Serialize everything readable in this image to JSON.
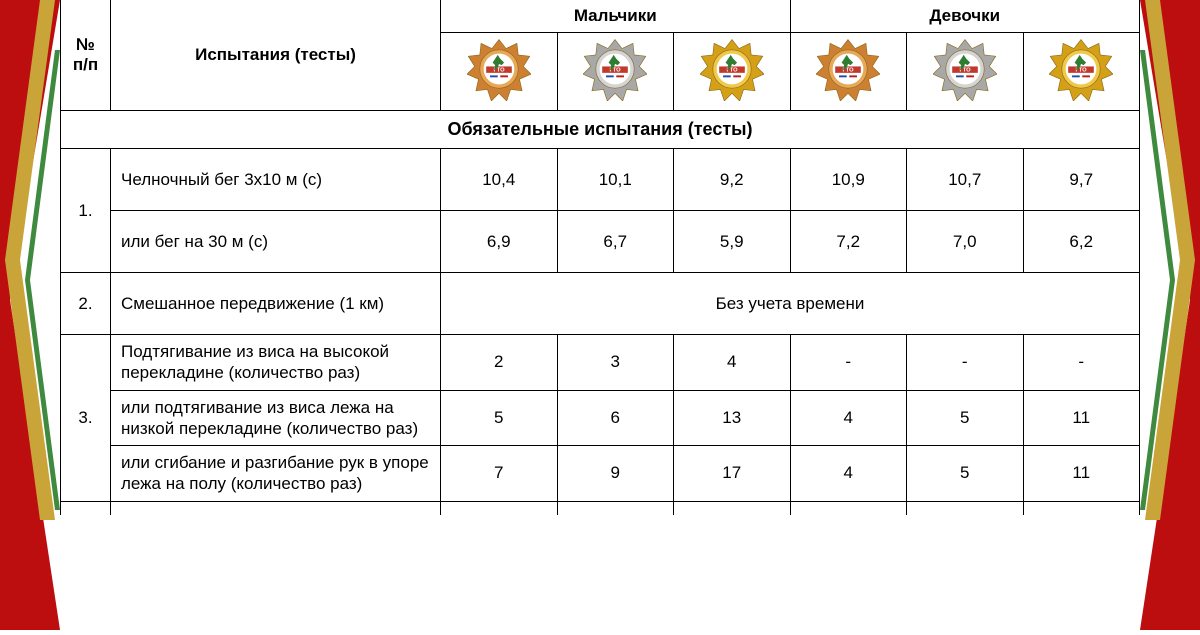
{
  "stripes": {
    "red": "#bc0e0e",
    "gold": "#c9a438",
    "green": "#3f8a3f"
  },
  "header": {
    "num": "№ п/п",
    "tests": "Испытания (тесты)",
    "boys": "Мальчики",
    "girls": "Девочки"
  },
  "badges": {
    "gto_label": "ГТО",
    "bronze_outer": "#cd7f32",
    "bronze_inner": "#e8a858",
    "silver_outer": "#a8a8a8",
    "silver_inner": "#d4d4d4",
    "gold_outer": "#d4a017",
    "gold_inner": "#f0c84a",
    "runner": "#c0392b"
  },
  "section_header": "Обязательные испытания (тесты)",
  "rows": [
    {
      "num": "1.",
      "tests": [
        {
          "label": "Челночный бег 3х10 м (с)",
          "vals": [
            "10,4",
            "10,1",
            "9,2",
            "10,9",
            "10,7",
            "9,7"
          ]
        },
        {
          "label": "или бег на 30 м (с)",
          "vals": [
            "6,9",
            "6,7",
            "5,9",
            "7,2",
            "7,0",
            "6,2"
          ]
        }
      ]
    },
    {
      "num": "2.",
      "tests": [
        {
          "label": "Смешанное передвижение (1 км)",
          "merged": "Без учета времени"
        }
      ]
    },
    {
      "num": "3.",
      "tests": [
        {
          "label": "Подтягивание из виса на высокой перекладине (количество раз)",
          "vals": [
            "2",
            "3",
            "4",
            "-",
            "-",
            "-"
          ]
        },
        {
          "label": "или подтягивание из виса лежа на низкой перекладине (количество раз)",
          "vals": [
            "5",
            "6",
            "13",
            "4",
            "5",
            "11"
          ]
        },
        {
          "label": "или сгибание и разгибание рук в упоре лежа на полу (количество раз)",
          "vals": [
            "7",
            "9",
            "17",
            "4",
            "5",
            "11"
          ]
        }
      ]
    }
  ],
  "table_style": {
    "border_color": "#000000",
    "font_size": 17,
    "header_font_weight": "bold"
  }
}
